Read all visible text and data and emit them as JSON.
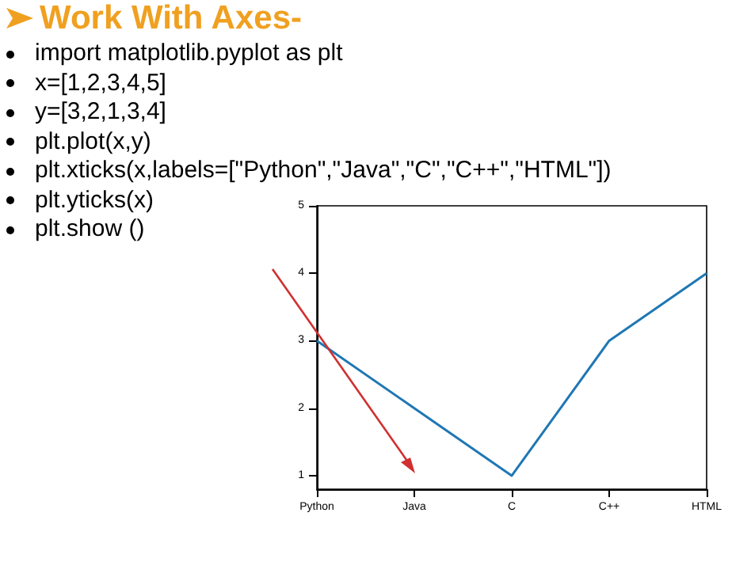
{
  "chart_data": {
    "type": "line",
    "title": "Work With Axes-",
    "annotations": [
      "import matplotlib.pyplot as plt",
      "x=[1,2,3,4,5]",
      "y=[3,2,1,3,4]",
      "plt.plot(x,y)",
      "plt.xticks(x,labels=[\"Python\",\"Java\",\"C\",\"C++\",\"HTML\"])",
      "plt.yticks(x)",
      "plt.show ()"
    ],
    "categories": [
      "Python",
      "Java",
      "C",
      "C++",
      "HTML"
    ],
    "series": [
      {
        "color": "#1f77b4",
        "values": [
          3,
          2,
          1,
          3,
          4
        ]
      }
    ],
    "ylim": [
      0.8,
      5
    ],
    "yticks": [
      1,
      2,
      3,
      4,
      5
    ],
    "grid": false,
    "marker": "none",
    "line_style": "solid"
  }
}
